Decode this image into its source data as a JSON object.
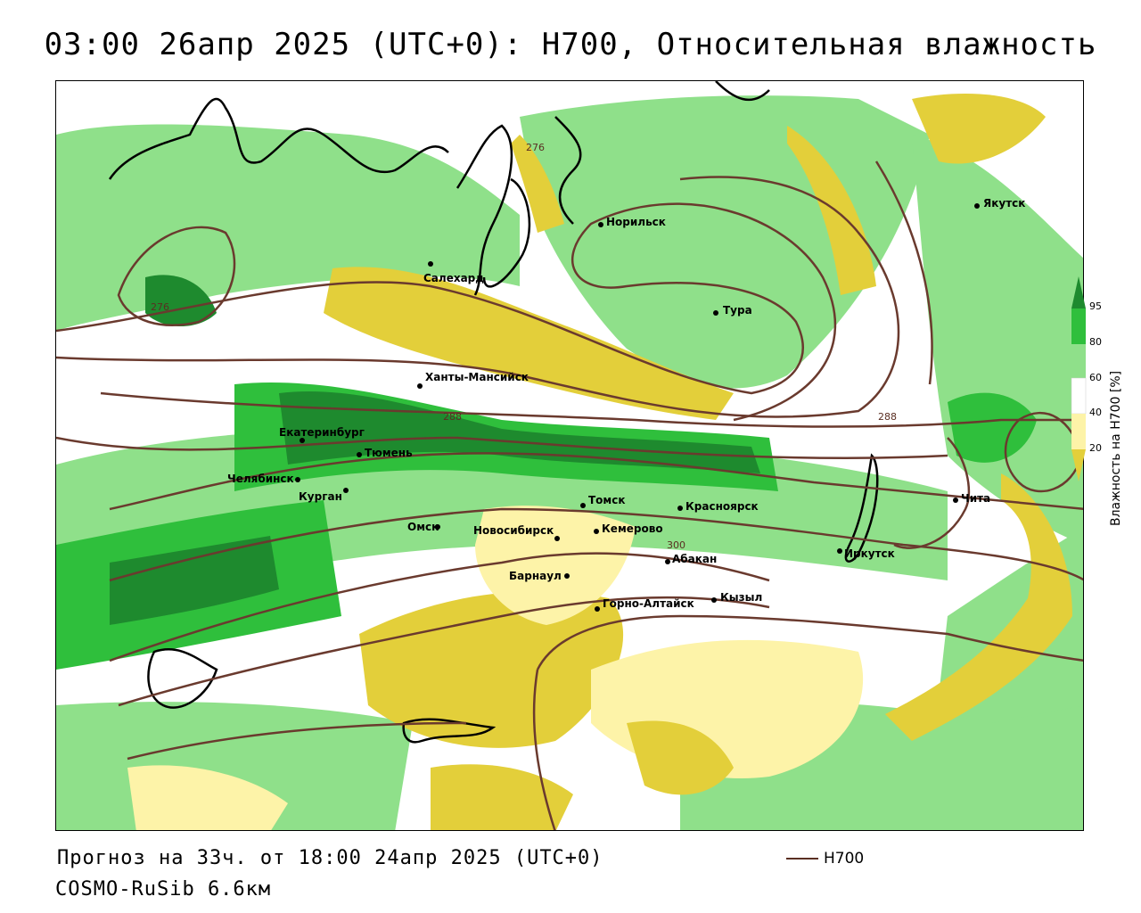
{
  "title": "03:00 26апр 2025 (UTC+0): H700, Относительная влажность",
  "footer": {
    "forecast": "Прогноз на 33ч. от 18:00 24апр 2025 (UTC+0)",
    "model": "COSMO-RuSib 6.6км",
    "legend_label": "H700"
  },
  "colorbar": {
    "title": "Влажность на H700 [%]",
    "ticks": [
      "95",
      "80",
      "60",
      "40",
      "20"
    ],
    "colors": {
      "c95": "#1e8a2e",
      "c80": "#2fbf3c",
      "c60": "#8fe08a",
      "c40": "#ffffff",
      "c20a": "#fdf3a8",
      "c20b": "#e3cf3a"
    }
  },
  "isolines": [
    "276",
    "276",
    "288",
    "288",
    "300"
  ],
  "cities": [
    {
      "name": "Норильск"
    },
    {
      "name": "Якутск"
    },
    {
      "name": "Салехард"
    },
    {
      "name": "Тура"
    },
    {
      "name": "Ханты-Мансийск"
    },
    {
      "name": "Екатеринбург"
    },
    {
      "name": "Тюмень"
    },
    {
      "name": "Челябинск"
    },
    {
      "name": "Курган"
    },
    {
      "name": "Томск"
    },
    {
      "name": "Красноярск"
    },
    {
      "name": "Омск"
    },
    {
      "name": "Новосибирск"
    },
    {
      "name": "Кемерово"
    },
    {
      "name": "Абакан"
    },
    {
      "name": "Иркутск"
    },
    {
      "name": "Чита"
    },
    {
      "name": "Барнаул"
    },
    {
      "name": "Горно-Алтайск"
    },
    {
      "name": "Кызыл"
    }
  ]
}
